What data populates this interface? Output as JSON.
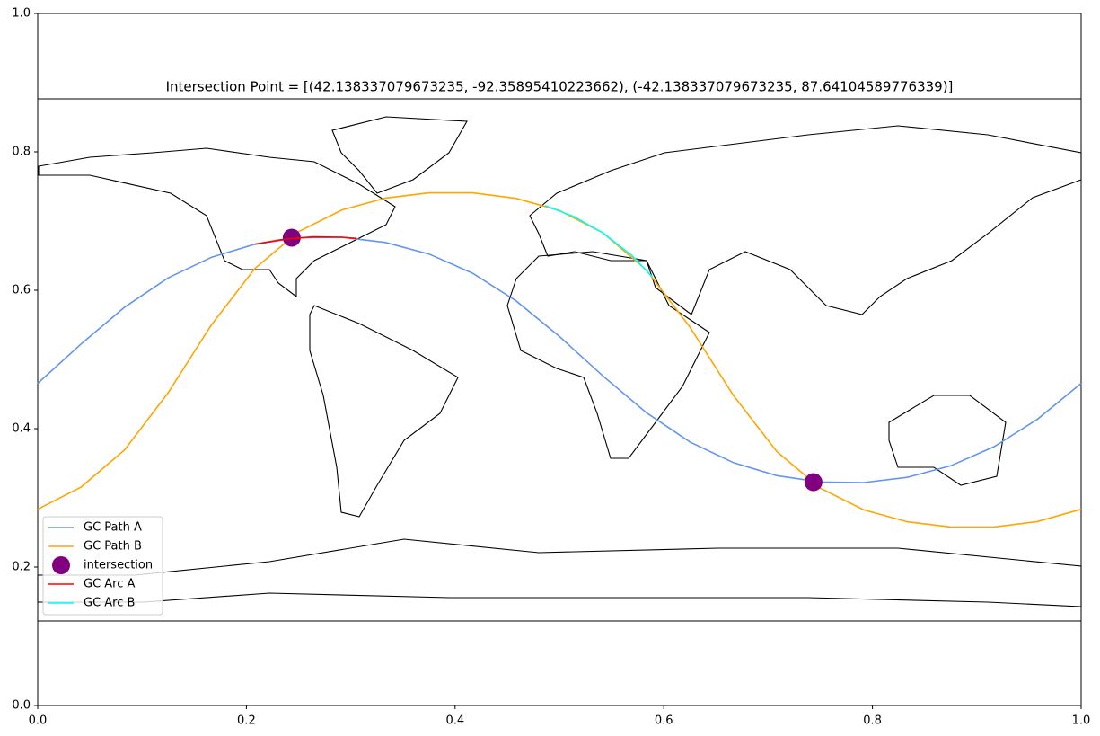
{
  "chart_data": [
    {
      "type": "axes",
      "xlim": [
        0,
        1
      ],
      "ylim": [
        0,
        1
      ],
      "xticks": [
        {
          "value": 0,
          "label": "0.0"
        },
        0.2,
        0.4,
        0.6,
        0.8,
        {
          "value": 1,
          "label": "1.0"
        }
      ],
      "yticks": [
        {
          "value": 0,
          "label": "0.0"
        },
        0.2,
        0.4,
        0.6,
        0.8,
        {
          "value": 1,
          "label": "1.0"
        }
      ]
    },
    {
      "type": "map",
      "title": "Intersection Point = [(42.138337079673235, -92.35895410223662), (-42.138337079673235, 87.64104589776339)]",
      "xlim": [
        -180,
        180
      ],
      "ylim": [
        -90,
        90
      ],
      "legend": "lower left",
      "series": [
        {
          "name": "GC Path A",
          "type": "line",
          "color": "#6495ed",
          "x": [
            -180,
            -165,
            -150,
            -135,
            -120,
            -105,
            -90,
            -75,
            -60,
            -45,
            -30,
            -15,
            0,
            15,
            30,
            45,
            60,
            75,
            90,
            105,
            120,
            135,
            150,
            165,
            180
          ],
          "values": [
            -8.1,
            5.5,
            18.2,
            28.3,
            35.4,
            39.9,
            42.1,
            42.3,
            40.5,
            36.5,
            29.9,
            20.4,
            8.1,
            -5.5,
            -18.2,
            -28.3,
            -35.4,
            -39.9,
            -42.1,
            -42.3,
            -40.5,
            -36.5,
            -29.9,
            -20.4,
            -8.1
          ]
        },
        {
          "name": "GC Path B",
          "type": "line",
          "color": "#ffa500",
          "x": [
            -180,
            -165,
            -150,
            -135,
            -120,
            -105,
            -90,
            -75,
            -60,
            -45,
            -30,
            -15,
            0,
            15,
            30,
            45,
            60,
            75,
            90,
            105,
            120,
            135,
            150,
            165,
            180
          ],
          "values": [
            -51.5,
            -43.8,
            -31.0,
            -11.3,
            12.2,
            31.6,
            44.2,
            51.7,
            55.8,
            57.6,
            57.6,
            55.7,
            51.5,
            43.8,
            31.0,
            11.3,
            -12.2,
            -31.6,
            -44.2,
            -51.7,
            -55.8,
            -57.6,
            -57.6,
            -55.7,
            -51.5
          ]
        },
        {
          "name": "intersection",
          "type": "scatter",
          "color": "#800080",
          "x": [
            -92.35895410223662,
            87.64104589776339
          ],
          "values": [
            42.138337079673235,
            -42.138337079673235
          ]
        },
        {
          "name": "GC Arc A",
          "type": "line",
          "color": "#ff0000",
          "x": [
            -105,
            -95,
            -85,
            -75,
            -70
          ],
          "values": [
            39.9,
            41.6,
            42.4,
            42.3,
            41.9
          ]
        },
        {
          "name": "GC Arc B",
          "type": "line",
          "color": "#00ffff",
          "x": [
            -5,
            5,
            15,
            25,
            32
          ],
          "values": [
            53.2,
            49.4,
            43.8,
            36.0,
            28.7
          ]
        }
      ]
    }
  ]
}
